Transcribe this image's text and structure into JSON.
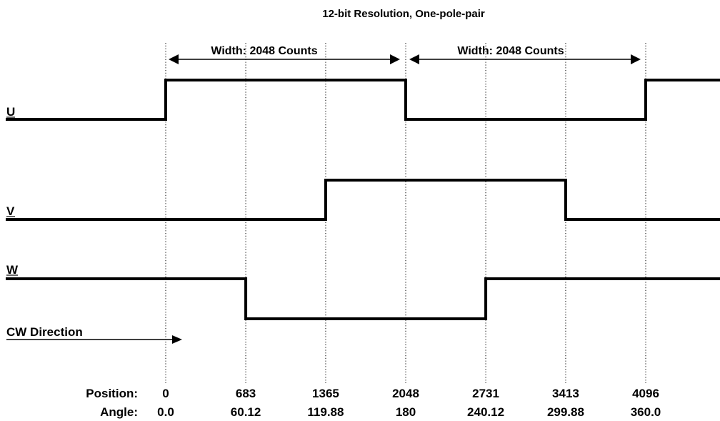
{
  "title": "12-bit Resolution, One-pole-pair",
  "width_labels": [
    "Width: 2048 Counts",
    "Width: 2048 Counts"
  ],
  "signals": {
    "u": {
      "label": "U",
      "transitions": [
        0,
        2048,
        4096
      ],
      "initial_level": "low"
    },
    "v": {
      "label": "V",
      "transitions": [
        1365,
        3413
      ],
      "initial_level": "low"
    },
    "w": {
      "label": "W",
      "transitions": [
        683,
        2731
      ],
      "initial_level": "high"
    }
  },
  "direction_label": "CW Direction",
  "axis": {
    "position_title": "Position:",
    "angle_title": "Angle:",
    "positions": [
      "0",
      "683",
      "1365",
      "2048",
      "2731",
      "3413",
      "4096"
    ],
    "angles": [
      "0.0",
      "60.12",
      "119.88",
      "180",
      "240.12",
      "299.88",
      "360.0"
    ]
  },
  "colors": {
    "line": "#000000",
    "background": "#ffffff"
  }
}
